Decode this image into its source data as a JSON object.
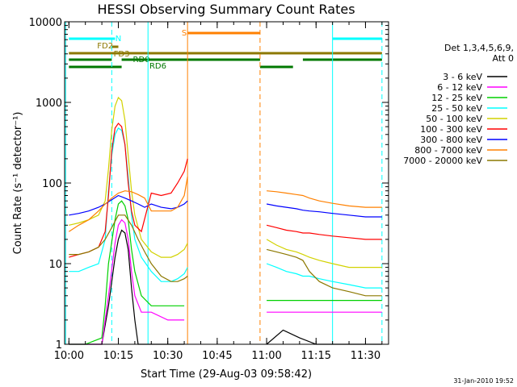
{
  "chart_data": {
    "type": "line",
    "title": "HESSI Observing Summary Count Rates",
    "xlabel": "Start Time (29-Aug-03 09:58:42)",
    "ylabel": "Count Rate (s⁻¹ detector⁻¹)",
    "yscale": "log",
    "ylim": [
      1,
      10000
    ],
    "xlim": [
      "09:58:42",
      "11:37"
    ],
    "grid": false,
    "legend_position": "right",
    "x_ticks": [
      "10:00",
      "10:15",
      "10:30",
      "10:45",
      "11:00",
      "11:15",
      "11:30"
    ],
    "y_ticks": [
      "1",
      "10",
      "100",
      "1000",
      "10000"
    ],
    "legend_header": [
      "Det 1,3,4,5,6,9,",
      "Att 0"
    ],
    "date_stamp": "31-Jan-2010 19:52",
    "gap": [
      "10:37",
      "10:58"
    ],
    "series": [
      {
        "name": "3 - 6 keV",
        "color": "#000000",
        "x": [
          "10:00",
          "10:05",
          "10:10",
          "10:12",
          "10:14",
          "10:15",
          "10:16",
          "10:17",
          "10:18",
          "10:19",
          "10:20",
          "10:21",
          "10:22",
          "10:25",
          "10:30",
          "10:35",
          "11:00",
          "11:05",
          "11:10",
          "11:15",
          "11:20",
          "11:25",
          "11:30",
          "11:35"
        ],
        "y": [
          1,
          1,
          1,
          3,
          12,
          20,
          26,
          24,
          15,
          5,
          2,
          1,
          1,
          1,
          1,
          1,
          1,
          1.5,
          1.2,
          1,
          1,
          1,
          1,
          1
        ]
      },
      {
        "name": "6 - 12 keV",
        "color": "#ff00ff",
        "x": [
          "10:00",
          "10:05",
          "10:10",
          "10:12",
          "10:14",
          "10:15",
          "10:16",
          "10:17",
          "10:18",
          "10:19",
          "10:20",
          "10:22",
          "10:25",
          "10:30",
          "10:35",
          "11:00",
          "11:05",
          "11:10",
          "11:15",
          "11:20",
          "11:25",
          "11:30",
          "11:35"
        ],
        "y": [
          1,
          1,
          1,
          4,
          18,
          30,
          35,
          32,
          20,
          8,
          4,
          2.5,
          2.5,
          2,
          2,
          2.5,
          2.5,
          2.5,
          2.5,
          2.5,
          2.5,
          2.5,
          2.5
        ]
      },
      {
        "name": "12 - 25 keV",
        "color": "#00d000",
        "x": [
          "10:00",
          "10:05",
          "10:10",
          "10:11",
          "10:12",
          "10:14",
          "10:15",
          "10:16",
          "10:17",
          "10:18",
          "10:19",
          "10:20",
          "10:22",
          "10:25",
          "10:30",
          "10:35",
          "11:00",
          "11:05",
          "11:10",
          "11:15",
          "11:20",
          "11:25",
          "11:30",
          "11:35"
        ],
        "y": [
          1,
          1,
          1.2,
          3,
          10,
          35,
          55,
          60,
          52,
          35,
          15,
          8,
          4,
          3,
          3,
          3,
          3.5,
          3.5,
          3.5,
          3.5,
          3.5,
          3.5,
          3.5,
          3.5
        ]
      },
      {
        "name": "25 - 50 keV",
        "color": "#00ffff",
        "x": [
          "10:00",
          "10:03",
          "10:06",
          "10:09",
          "10:11",
          "10:12",
          "10:13",
          "10:14",
          "10:15",
          "10:16",
          "10:17",
          "10:18",
          "10:19",
          "10:20",
          "10:22",
          "10:25",
          "10:28",
          "10:31",
          "10:33",
          "10:35",
          "10:36",
          "11:00",
          "11:03",
          "11:06",
          "11:09",
          "11:11",
          "11:13",
          "11:16",
          "11:20",
          "11:25",
          "11:30",
          "11:35"
        ],
        "y": [
          8,
          8,
          9,
          10,
          20,
          80,
          220,
          400,
          480,
          450,
          300,
          120,
          40,
          20,
          12,
          8,
          6,
          6,
          6.5,
          7.5,
          9,
          10,
          9,
          8,
          7.5,
          7,
          7,
          6.5,
          6,
          5.5,
          5,
          5
        ]
      },
      {
        "name": "50 - 100 keV",
        "color": "#d2d200",
        "x": [
          "10:00",
          "10:03",
          "10:06",
          "10:09",
          "10:11",
          "10:12",
          "10:13",
          "10:14",
          "10:15",
          "10:16",
          "10:17",
          "10:18",
          "10:19",
          "10:20",
          "10:22",
          "10:25",
          "10:28",
          "10:31",
          "10:33",
          "10:35",
          "10:36",
          "11:00",
          "11:03",
          "11:06",
          "11:09",
          "11:11",
          "11:13",
          "11:16",
          "11:20",
          "11:25",
          "11:30",
          "11:35"
        ],
        "y": [
          30,
          32,
          35,
          40,
          60,
          150,
          450,
          900,
          1150,
          1050,
          600,
          220,
          80,
          40,
          20,
          14,
          12,
          12,
          13,
          15,
          18,
          20,
          17,
          15,
          14,
          13,
          12,
          11,
          10,
          9,
          9,
          9
        ]
      },
      {
        "name": "100 - 300 keV",
        "color": "#ff0000",
        "x": [
          "10:00",
          "10:03",
          "10:06",
          "10:09",
          "10:11",
          "10:12",
          "10:13",
          "10:14",
          "10:15",
          "10:16",
          "10:17",
          "10:18",
          "10:19",
          "10:20",
          "10:22",
          "10:25",
          "10:28",
          "10:31",
          "10:33",
          "10:35",
          "10:36",
          "11:00",
          "11:03",
          "11:06",
          "11:09",
          "11:11",
          "11:13",
          "11:16",
          "11:20",
          "11:25",
          "11:30",
          "11:35"
        ],
        "y": [
          12,
          13,
          14,
          16,
          25,
          70,
          250,
          480,
          550,
          500,
          300,
          100,
          45,
          30,
          25,
          75,
          70,
          75,
          100,
          140,
          200,
          30,
          28,
          26,
          25,
          24,
          24,
          23,
          22,
          21,
          20,
          20
        ]
      },
      {
        "name": "300 - 800 keV",
        "color": "#0000ff",
        "x": [
          "10:00",
          "10:03",
          "10:06",
          "10:09",
          "10:11",
          "10:13",
          "10:15",
          "10:17",
          "10:19",
          "10:21",
          "10:23",
          "10:25",
          "10:28",
          "10:31",
          "10:33",
          "10:35",
          "10:36",
          "11:00",
          "11:03",
          "11:06",
          "11:09",
          "11:11",
          "11:13",
          "11:16",
          "11:20",
          "11:25",
          "11:30",
          "11:35"
        ],
        "y": [
          40,
          42,
          45,
          50,
          55,
          62,
          70,
          65,
          60,
          55,
          50,
          55,
          50,
          48,
          50,
          55,
          60,
          55,
          52,
          50,
          48,
          46,
          45,
          44,
          42,
          40,
          38,
          38
        ]
      },
      {
        "name": "800 - 7000 keV",
        "color": "#ff8000",
        "x": [
          "10:00",
          "10:03",
          "10:06",
          "10:09",
          "10:11",
          "10:13",
          "10:15",
          "10:17",
          "10:19",
          "10:21",
          "10:23",
          "10:25",
          "10:28",
          "10:31",
          "10:33",
          "10:35",
          "10:36",
          "11:00",
          "11:03",
          "11:06",
          "11:09",
          "11:11",
          "11:13",
          "11:16",
          "11:20",
          "11:25",
          "11:30",
          "11:35"
        ],
        "y": [
          25,
          30,
          35,
          45,
          55,
          65,
          75,
          80,
          78,
          72,
          65,
          45,
          45,
          45,
          50,
          70,
          120,
          80,
          78,
          75,
          72,
          70,
          65,
          60,
          56,
          52,
          50,
          50
        ]
      },
      {
        "name": "7000 - 20000 keV",
        "color": "#8c7800",
        "x": [
          "10:00",
          "10:03",
          "10:06",
          "10:09",
          "10:11",
          "10:13",
          "10:15",
          "10:17",
          "10:19",
          "10:21",
          "10:23",
          "10:25",
          "10:28",
          "10:31",
          "10:33",
          "10:35",
          "10:36",
          "11:00",
          "11:03",
          "11:06",
          "11:09",
          "11:11",
          "11:13",
          "11:16",
          "11:20",
          "11:25",
          "11:30",
          "11:35"
        ],
        "y": [
          13,
          13,
          14,
          16,
          20,
          28,
          40,
          40,
          30,
          20,
          14,
          10,
          7,
          6,
          6,
          6.5,
          7,
          15,
          14,
          13,
          12,
          11,
          8,
          6,
          5,
          4.5,
          4,
          4
        ]
      }
    ],
    "flags": [
      {
        "label": "N",
        "color": "#00ffff",
        "segments": [
          [
            "10:00",
            "10:14"
          ],
          [
            "11:20",
            "11:35"
          ]
        ]
      },
      {
        "label": "FD2",
        "color": "#8c7800",
        "segments": [
          [
            "10:13",
            "10:15"
          ]
        ]
      },
      {
        "label": "FD3",
        "color": "#8c7800",
        "segments": [
          [
            "10:00",
            "11:35"
          ]
        ]
      },
      {
        "label": "RD0",
        "color": "#007800",
        "segments": [
          [
            "10:00",
            "10:13"
          ],
          [
            "10:16",
            "10:58"
          ],
          [
            "11:11",
            "11:35"
          ]
        ]
      },
      {
        "label": "RD6",
        "color": "#007800",
        "segments": [
          [
            "10:00",
            "10:16"
          ],
          [
            "10:58",
            "11:08"
          ]
        ]
      },
      {
        "label": "S",
        "color": "#ff8000",
        "segments": [
          [
            "10:36",
            "10:58"
          ]
        ]
      }
    ],
    "markers": [
      {
        "time": "09:59",
        "color": "#00ffff",
        "style": "solid"
      },
      {
        "time": "10:13",
        "color": "#00ffff",
        "style": "dashed"
      },
      {
        "time": "10:24",
        "color": "#00ffff",
        "style": "solid"
      },
      {
        "time": "10:36",
        "color": "#ff8000",
        "style": "solid"
      },
      {
        "time": "10:58",
        "color": "#ff8000",
        "style": "dashed"
      },
      {
        "time": "11:20",
        "color": "#00ffff",
        "style": "solid"
      },
      {
        "time": "11:35",
        "color": "#00ffff",
        "style": "dashed"
      }
    ]
  }
}
